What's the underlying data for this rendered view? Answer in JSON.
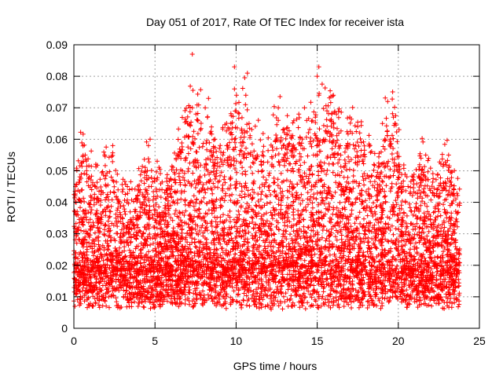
{
  "chart_data": {
    "type": "scatter",
    "title": "Day 051 of 2017, Rate Of TEC Index for receiver ista",
    "xlabel": "GPS time / hours",
    "ylabel": "ROTI / TECUs",
    "xlim": [
      0,
      25
    ],
    "ylim": [
      0,
      0.09
    ],
    "xticks": [
      0,
      5,
      10,
      15,
      20,
      25
    ],
    "yticks": [
      0,
      0.01,
      0.02,
      0.03,
      0.04,
      0.05,
      0.06,
      0.07,
      0.08,
      0.09
    ],
    "xtick_labels": [
      "0",
      "5",
      "10",
      "15",
      "20",
      "25"
    ],
    "ytick_labels": [
      "0",
      "0.01",
      "0.02",
      "0.03",
      "0.04",
      "0.05",
      "0.06",
      "0.07",
      "0.08",
      "0.09"
    ],
    "grid": true,
    "marker": "+",
    "color": "#ff0000",
    "series": [
      {
        "name": "ROTI",
        "x_range": [
          0,
          23.8
        ],
        "points": [
          [
            7.3,
            0.087
          ],
          [
            9.9,
            0.083
          ],
          [
            15.1,
            0.083
          ],
          [
            15.0,
            0.08
          ],
          [
            10.7,
            0.081
          ],
          [
            9.9,
            0.076
          ],
          [
            10.6,
            0.074
          ],
          [
            15.1,
            0.074
          ],
          [
            16.0,
            0.074
          ],
          [
            8.3,
            0.073
          ],
          [
            7.3,
            0.07
          ],
          [
            12.6,
            0.07
          ],
          [
            10.0,
            0.069
          ],
          [
            15.9,
            0.068
          ],
          [
            19.7,
            0.067
          ],
          [
            19.8,
            0.065
          ],
          [
            7.0,
            0.065
          ],
          [
            12.6,
            0.066
          ],
          [
            7.8,
            0.063
          ],
          [
            10.8,
            0.065
          ],
          [
            8.4,
            0.062
          ],
          [
            4.7,
            0.06
          ],
          [
            9.9,
            0.06
          ],
          [
            2.4,
            0.058
          ],
          [
            4.6,
            0.058
          ],
          [
            19.5,
            0.06
          ],
          [
            15.9,
            0.059
          ],
          [
            1.9,
            0.055
          ],
          [
            0.7,
            0.055
          ],
          [
            0.6,
            0.053
          ],
          [
            21.4,
            0.054
          ],
          [
            23.1,
            0.055
          ],
          [
            13.6,
            0.057
          ],
          [
            12.9,
            0.058
          ],
          [
            12.5,
            0.057
          ],
          [
            16.8,
            0.058
          ],
          [
            14.2,
            0.057
          ],
          [
            17.3,
            0.057
          ],
          [
            9.2,
            0.052
          ],
          [
            11.3,
            0.055
          ],
          [
            18.5,
            0.052
          ],
          [
            1.1,
            0.044
          ],
          [
            2.4,
            0.047
          ],
          [
            3.3,
            0.045
          ],
          [
            4.0,
            0.044
          ],
          [
            5.6,
            0.043
          ],
          [
            6.3,
            0.043
          ],
          [
            20.6,
            0.045
          ],
          [
            22.4,
            0.044
          ],
          [
            23.3,
            0.043
          ],
          [
            0.3,
            0.041
          ],
          [
            1.8,
            0.043
          ],
          [
            3.8,
            0.041
          ],
          [
            6.6,
            0.041
          ],
          [
            18.9,
            0.049
          ],
          [
            20.0,
            0.048
          ],
          [
            21.8,
            0.042
          ],
          [
            22.8,
            0.046
          ],
          [
            17.6,
            0.046
          ],
          [
            14.7,
            0.049
          ]
        ]
      }
    ]
  }
}
